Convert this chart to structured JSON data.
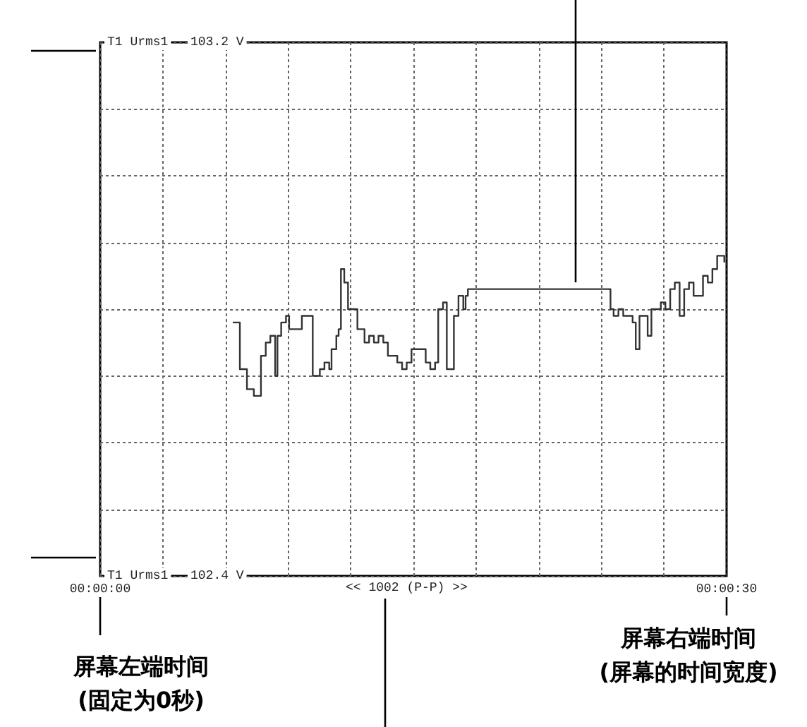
{
  "chart_data": {
    "type": "step",
    "x": [
      6.35,
      6.69,
      7.03,
      7.36,
      7.7,
      7.93,
      8.15,
      8.38,
      8.49,
      8.67,
      8.9,
      9.05,
      9.28,
      9.5,
      9.66,
      9.84,
      10.02,
      10.18,
      10.52,
      10.74,
      10.97,
      11.08,
      11.31,
      11.42,
      11.53,
      11.69,
      11.87,
      12.21,
      12.32,
      12.66,
      12.88,
      13.11,
      13.33,
      13.56,
      13.78,
      14.01,
      14.23,
      14.46,
      14.68,
      14.91,
      15.14,
      15.36,
      15.59,
      15.81,
      16.04,
      16.19,
      16.42,
      16.6,
      16.87,
      16.94,
      17.16,
      17.39,
      17.5,
      17.61,
      24.44,
      24.59,
      24.82,
      25.05,
      25.27,
      25.5,
      25.65,
      25.83,
      26.06,
      26.22,
      26.4,
      26.62,
      26.85,
      27.07,
      27.3,
      27.52,
      27.75,
      27.97,
      28.2,
      28.42,
      28.65,
      28.87,
      29.1,
      29.32,
      29.55,
      29.89
    ],
    "series": [
      {
        "color": "#333333",
        "values": [
          102.78,
          102.71,
          102.68,
          102.67,
          102.73,
          102.75,
          102.76,
          102.7,
          102.76,
          102.78,
          102.79,
          102.77,
          102.77,
          102.77,
          102.79,
          102.79,
          102.79,
          102.7,
          102.71,
          102.72,
          102.71,
          102.74,
          102.76,
          102.77,
          102.86,
          102.84,
          102.8,
          102.8,
          102.77,
          102.75,
          102.76,
          102.75,
          102.76,
          102.75,
          102.73,
          102.73,
          102.72,
          102.71,
          102.72,
          102.74,
          102.74,
          102.74,
          102.72,
          102.71,
          102.72,
          102.8,
          102.81,
          102.71,
          102.71,
          102.79,
          102.82,
          102.8,
          102.82,
          102.83,
          102.8,
          102.79,
          102.8,
          102.79,
          102.79,
          102.78,
          102.74,
          102.79,
          102.79,
          102.76,
          102.8,
          102.8,
          102.81,
          102.8,
          102.83,
          102.84,
          102.79,
          102.83,
          102.84,
          102.82,
          102.82,
          102.85,
          102.84,
          102.86,
          102.88,
          102.87
        ]
      }
    ],
    "xlim": [
      0,
      30
    ],
    "xticks": [
      {
        "value": 0,
        "label": "00:00:00"
      },
      {
        "value": 3,
        "label": null
      },
      {
        "value": 6,
        "label": null
      },
      {
        "value": 9,
        "label": null
      },
      {
        "value": 12,
        "label": null
      },
      {
        "value": 15,
        "label": null
      },
      {
        "value": 18,
        "label": null
      },
      {
        "value": 21,
        "label": null
      },
      {
        "value": 24,
        "label": null
      },
      {
        "value": 27,
        "label": null
      },
      {
        "value": 30,
        "label": "00:00:30"
      }
    ],
    "ylim": [
      102.4,
      103.2
    ],
    "ylabel": "T1 Urms1",
    "yticks": [
      {
        "value": 102.4,
        "label": "102.4 V"
      },
      {
        "value": 102.5,
        "label": null
      },
      {
        "value": 102.6,
        "label": null
      },
      {
        "value": 102.7,
        "label": null
      },
      {
        "value": 102.8,
        "label": null
      },
      {
        "value": 102.9,
        "label": null
      },
      {
        "value": 103.0,
        "label": null
      },
      {
        "value": 103.1,
        "label": null
      },
      {
        "value": 103.2,
        "label": "103.2 V"
      }
    ],
    "grid": true,
    "line_style": "solid",
    "marker": "none",
    "annotations": [
      "<< 1002 (P-P) >>",
      "屏幕左端时间\n(固定为0秒)",
      "屏幕右端时间\n(屏幕的时间宽度)"
    ]
  }
}
